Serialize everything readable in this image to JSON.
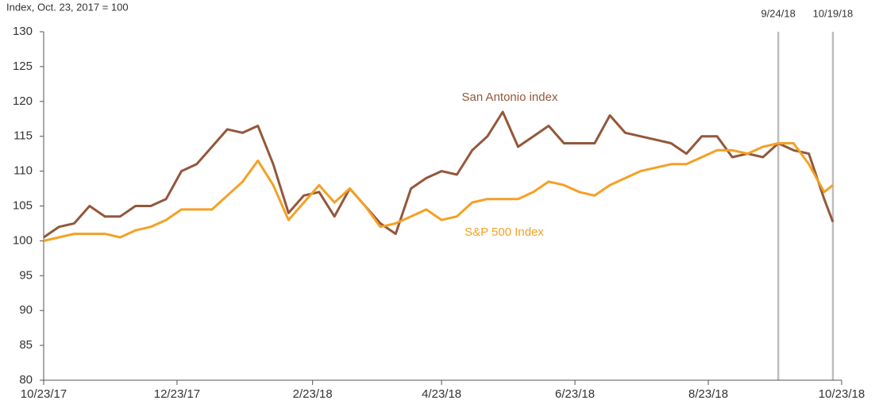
{
  "chart_data": {
    "type": "line",
    "ylabel": "Index, Oct. 23, 2017 = 100",
    "x": [
      "10/23/17",
      "10/30/17",
      "11/6/17",
      "11/13/17",
      "11/20/17",
      "11/27/17",
      "12/4/17",
      "12/11/17",
      "12/18/17",
      "12/25/17",
      "1/1/18",
      "1/8/18",
      "1/15/18",
      "1/22/18",
      "1/29/18",
      "2/5/18",
      "2/12/18",
      "2/19/18",
      "2/26/18",
      "3/5/18",
      "3/12/18",
      "3/19/18",
      "3/26/18",
      "4/2/18",
      "4/9/18",
      "4/16/18",
      "4/23/18",
      "4/30/18",
      "5/7/18",
      "5/14/18",
      "5/21/18",
      "5/28/18",
      "6/4/18",
      "6/11/18",
      "6/18/18",
      "6/25/18",
      "7/2/18",
      "7/9/18",
      "7/16/18",
      "7/23/18",
      "7/30/18",
      "8/6/18",
      "8/13/18",
      "8/20/18",
      "8/27/18",
      "9/3/18",
      "9/10/18",
      "9/17/18",
      "9/24/18",
      "10/1/18",
      "10/8/18",
      "10/15/18",
      "10/19/18"
    ],
    "series": [
      {
        "name": "San Antonio index",
        "color": "#94573a",
        "values": [
          100.5,
          102,
          102.5,
          105,
          103.5,
          103.5,
          105,
          105,
          106,
          110,
          111,
          113.5,
          116,
          115.5,
          116.5,
          111,
          104,
          106.5,
          107,
          103.5,
          107.5,
          105,
          102.5,
          101,
          107.5,
          109,
          110,
          109.5,
          113,
          115,
          118.5,
          113.5,
          115,
          116.5,
          114,
          114,
          114,
          118,
          115.5,
          115,
          114.5,
          114,
          112.5,
          115,
          115,
          112,
          112.5,
          112,
          114,
          113,
          112.5,
          106,
          102.7
        ]
      },
      {
        "name": "S&P 500 Index",
        "color": "#f5a024",
        "values": [
          100,
          100.5,
          101,
          101,
          101,
          100.5,
          101.5,
          102,
          103,
          104.5,
          104.5,
          104.5,
          106.5,
          108.5,
          111.5,
          108,
          103,
          105.5,
          108,
          105.5,
          107.5,
          105,
          102,
          102.5,
          103.5,
          104.5,
          103,
          103.5,
          105.5,
          106,
          106,
          106,
          107,
          108.5,
          108,
          107,
          106.5,
          108,
          109,
          110,
          110.5,
          111,
          111,
          112,
          113,
          113,
          112.5,
          113.5,
          114,
          114,
          111,
          107,
          108
        ]
      }
    ],
    "xlim": [
      "10/23/17",
      "10/23/18"
    ],
    "xticks": [
      "10/23/17",
      "12/23/17",
      "2/23/18",
      "4/23/18",
      "6/23/18",
      "8/23/18",
      "10/23/18"
    ],
    "ylim": [
      80,
      130
    ],
    "yticks": [
      80,
      85,
      90,
      95,
      100,
      105,
      110,
      115,
      120,
      125,
      130
    ],
    "vlines": [
      "9/24/18",
      "10/19/18"
    ],
    "grid": false
  }
}
